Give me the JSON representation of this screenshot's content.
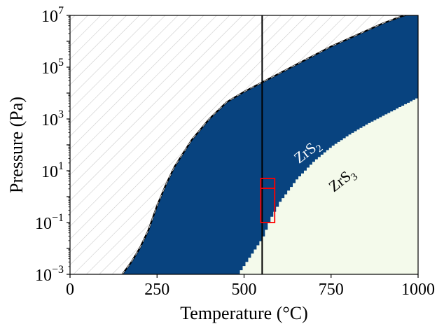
{
  "chart_data": {
    "type": "area",
    "xlabel": "Temperature (°C)",
    "ylabel": "Pressure (Pa)",
    "xlim": [
      0,
      1000
    ],
    "ylim_log10": [
      -3,
      7
    ],
    "y_scale": "log",
    "grid": false,
    "x_ticks": [
      {
        "value": 0,
        "label": "0"
      },
      {
        "value": 250,
        "label": "250"
      },
      {
        "value": 500,
        "label": "500"
      },
      {
        "value": 750,
        "label": "750"
      },
      {
        "value": 1000,
        "label": "1000"
      }
    ],
    "y_ticks": [
      {
        "exp": -3,
        "base": "10",
        "sup": "−3"
      },
      {
        "exp": -1,
        "base": "10",
        "sup": "−1"
      },
      {
        "exp": 1,
        "base": "10",
        "sup": "1"
      },
      {
        "exp": 3,
        "base": "10",
        "sup": "3"
      },
      {
        "exp": 5,
        "base": "10",
        "sup": "5"
      },
      {
        "exp": 7,
        "base": "10",
        "sup": "7"
      }
    ],
    "upper_boundary": {
      "style": "dashed",
      "x": [
        150,
        175,
        200,
        225,
        250,
        275,
        300,
        350,
        400,
        450,
        500,
        550,
        600,
        650,
        700,
        750,
        800,
        850,
        900,
        950,
        1000
      ],
      "log10_p": [
        -3.0,
        -2.55,
        -2.0,
        -1.3,
        -0.35,
        0.45,
        1.15,
        2.2,
        3.0,
        3.65,
        4.05,
        4.4,
        4.75,
        5.1,
        5.45,
        5.8,
        6.1,
        6.4,
        6.7,
        6.95,
        7.15
      ]
    },
    "lower_boundary": {
      "style": "step",
      "x": [
        480,
        500,
        530,
        550,
        575,
        600,
        650,
        700,
        750,
        800,
        850,
        900,
        950,
        1000
      ],
      "log10_p": [
        -3.0,
        -2.6,
        -2.0,
        -1.6,
        -0.8,
        -0.2,
        0.7,
        1.4,
        1.95,
        2.4,
        2.8,
        3.15,
        3.5,
        3.85
      ]
    },
    "regions": [
      {
        "name": "hatched",
        "color": "#cccccc"
      },
      {
        "name": "ZrS2",
        "label_base": "ZrS",
        "label_sub": "2",
        "color": "#08437f",
        "text_color": "#ffffff",
        "label_x": 690,
        "label_log10_p": 1.6,
        "label_rotation": -38
      },
      {
        "name": "ZrS3",
        "label_base": "ZrS",
        "label_sub": "3",
        "color": "#f4faeb",
        "text_color": "#000000",
        "label_x": 790,
        "label_log10_p": 0.5,
        "label_rotation": -38
      }
    ],
    "vertical_line": {
      "x": 552,
      "color": "#000000"
    },
    "highlight_box": {
      "x_range": [
        548,
        588
      ],
      "log10_p_range": [
        -1.0,
        0.7
      ],
      "divider_log10_p": 0.32,
      "color": "#ff0000"
    }
  }
}
